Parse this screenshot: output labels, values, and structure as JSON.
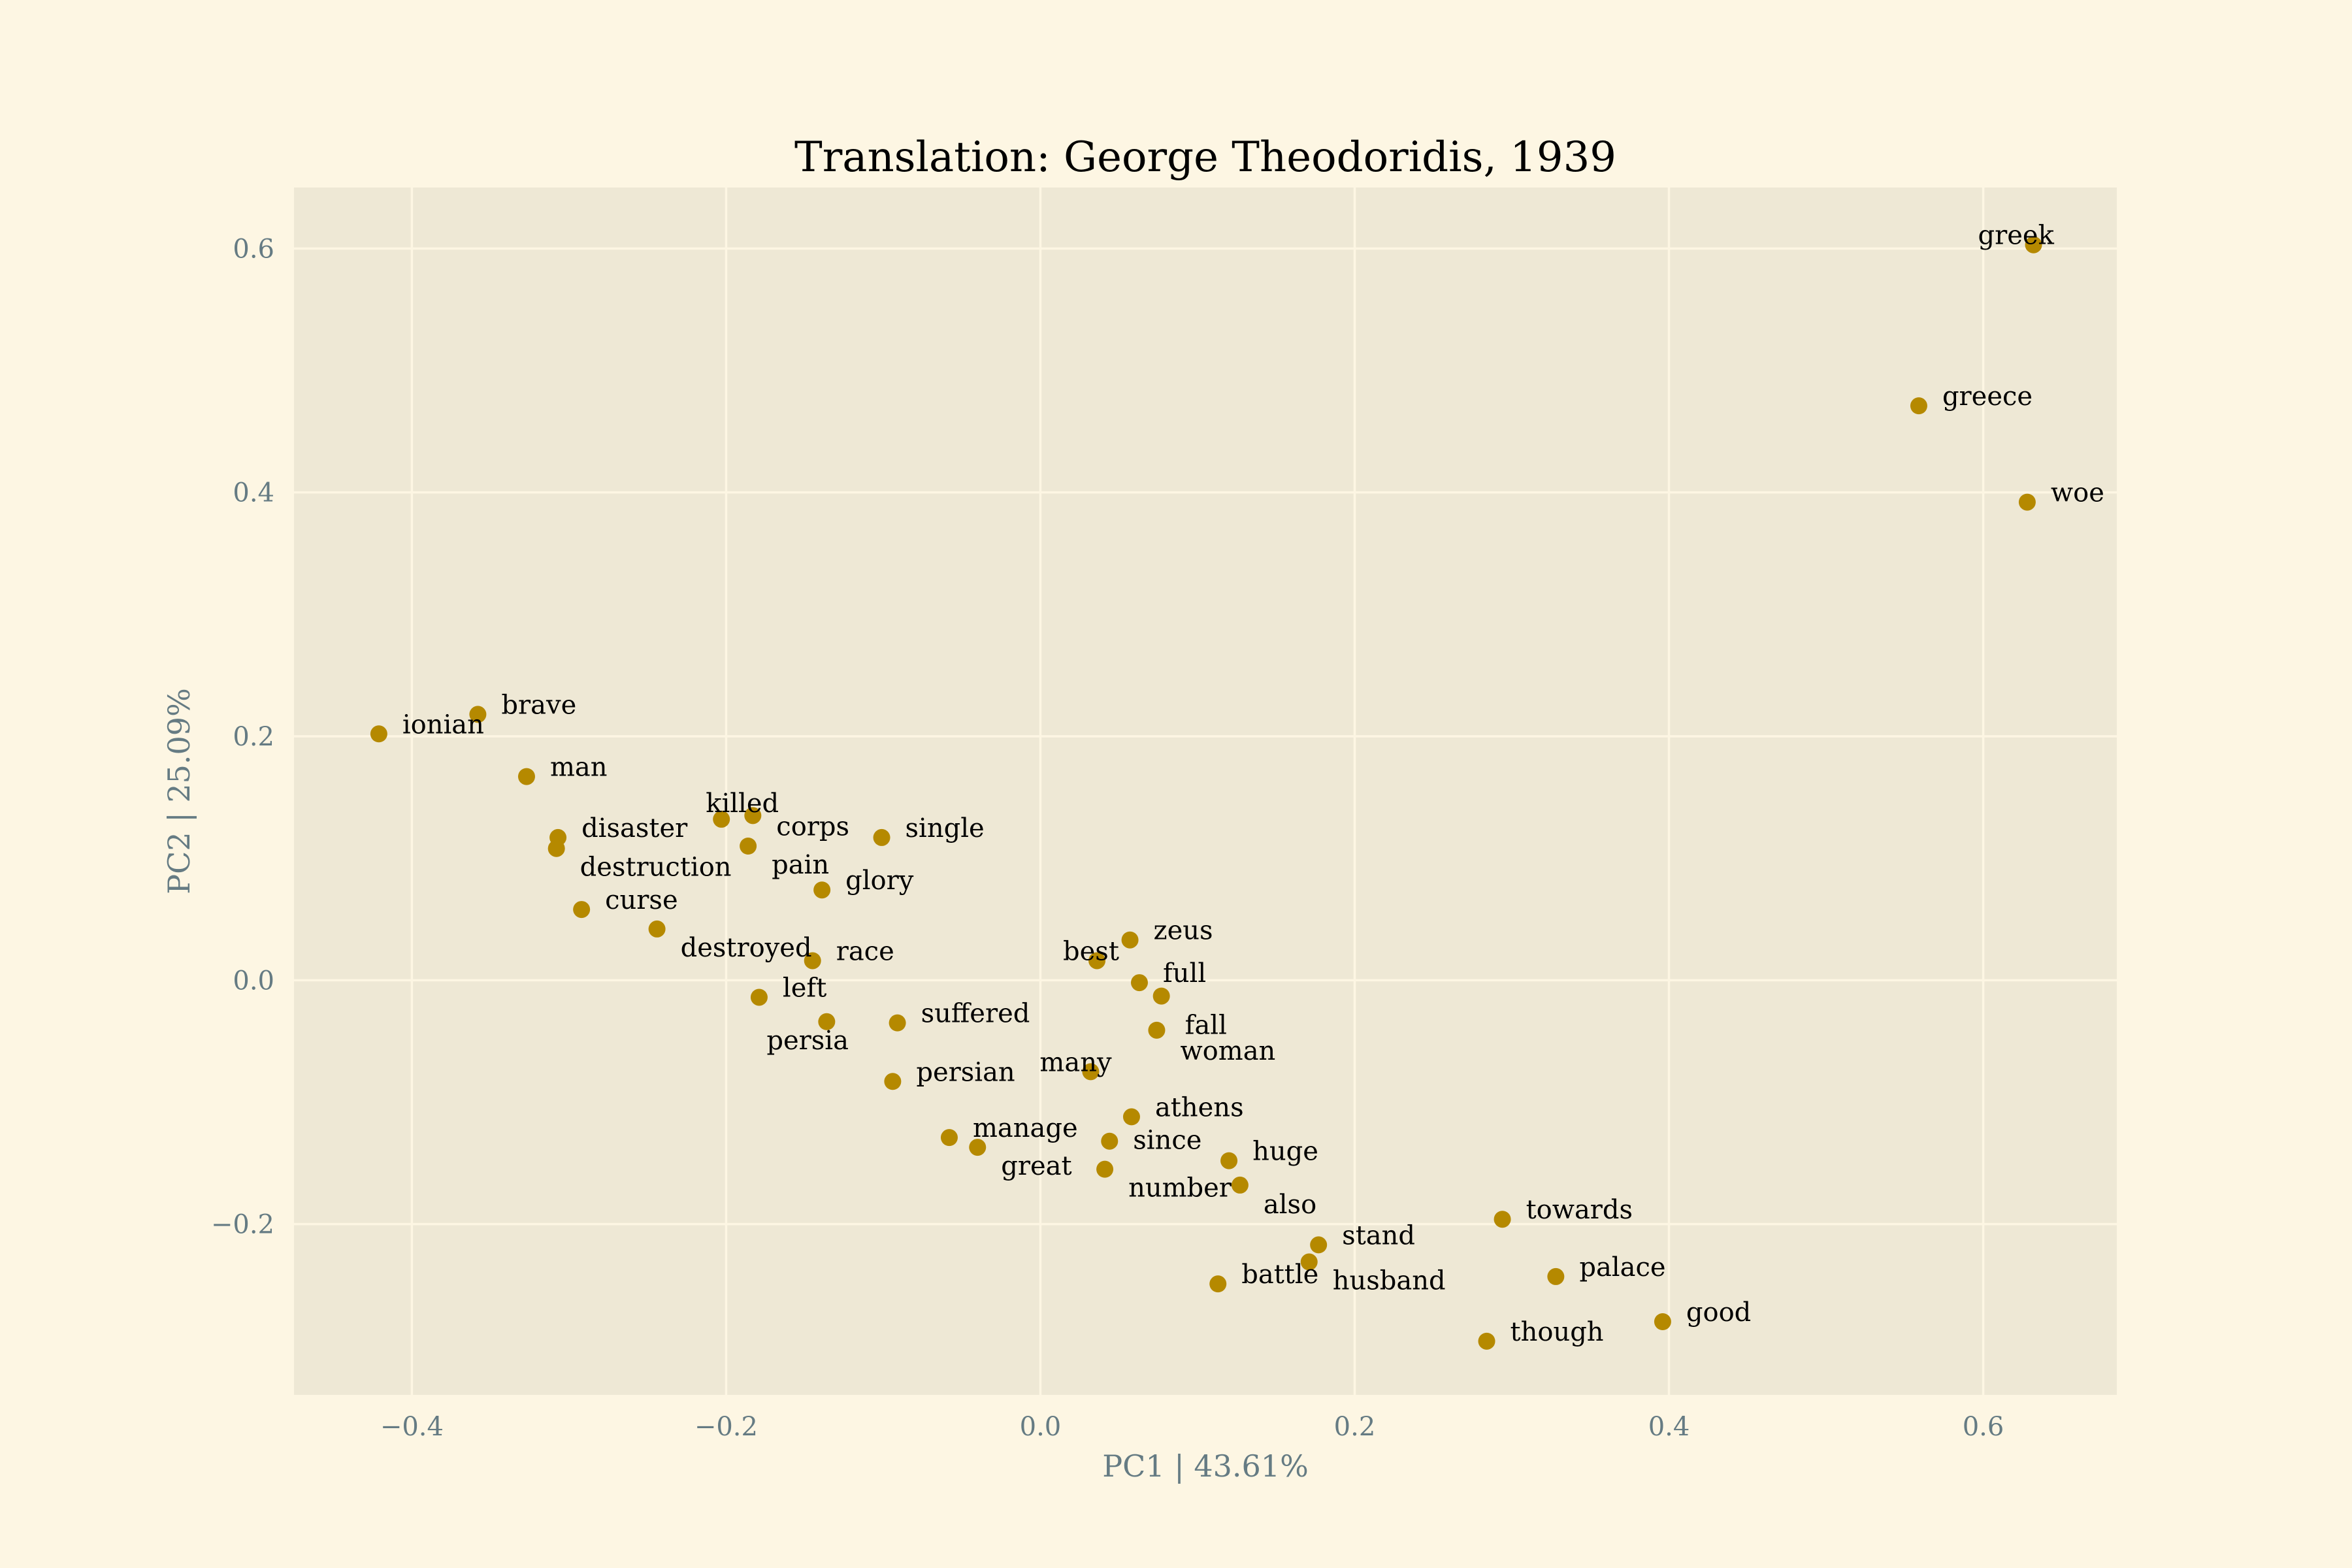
{
  "chart_data": {
    "type": "scatter",
    "title": "Translation: George Theodoridis, 1939",
    "xlabel": "PC1 | 43.61%",
    "ylabel": "PC2 | 25.09%",
    "xlim": [
      -0.475,
      0.685
    ],
    "ylim": [
      -0.34,
      0.65
    ],
    "xticks": [
      -0.4,
      -0.2,
      0.0,
      0.2,
      0.4,
      0.6
    ],
    "yticks": [
      -0.2,
      0.0,
      0.2,
      0.4,
      0.6
    ],
    "xtick_labels": [
      "−0.4",
      "−0.2",
      "0.0",
      "0.2",
      "0.4",
      "0.6"
    ],
    "ytick_labels": [
      "−0.2",
      "0.0",
      "0.2",
      "0.4",
      "0.6"
    ],
    "grid": true,
    "point_color": "#b58900",
    "background_color": "#eee8d5",
    "figure_color": "#fdf6e3",
    "points": [
      {
        "label": "greek",
        "x": 0.632,
        "y": 0.603
      },
      {
        "label": "greece",
        "x": 0.559,
        "y": 0.471
      },
      {
        "label": "woe",
        "x": 0.628,
        "y": 0.392
      },
      {
        "label": "brave",
        "x": -0.358,
        "y": 0.218
      },
      {
        "label": "ionian",
        "x": -0.421,
        "y": 0.202
      },
      {
        "label": "man",
        "x": -0.327,
        "y": 0.167
      },
      {
        "label": "killed",
        "x": -0.203,
        "y": 0.132
      },
      {
        "label": "corps",
        "x": -0.183,
        "y": 0.135
      },
      {
        "label": "disaster",
        "x": -0.307,
        "y": 0.117
      },
      {
        "label": "destruction",
        "x": -0.308,
        "y": 0.108
      },
      {
        "label": "single",
        "x": -0.101,
        "y": 0.117
      },
      {
        "label": "pain",
        "x": -0.186,
        "y": 0.11
      },
      {
        "label": "glory",
        "x": -0.139,
        "y": 0.074
      },
      {
        "label": "curse",
        "x": -0.292,
        "y": 0.058
      },
      {
        "label": "destroyed",
        "x": -0.244,
        "y": 0.042
      },
      {
        "label": "race",
        "x": -0.145,
        "y": 0.016
      },
      {
        "label": "zeus",
        "x": 0.057,
        "y": 0.033
      },
      {
        "label": "best",
        "x": 0.036,
        "y": 0.016
      },
      {
        "label": "full",
        "x": 0.063,
        "y": -0.002
      },
      {
        "label": "fall",
        "x": 0.077,
        "y": -0.013
      },
      {
        "label": "left",
        "x": -0.179,
        "y": -0.014
      },
      {
        "label": "persia",
        "x": -0.136,
        "y": -0.034
      },
      {
        "label": "suffered",
        "x": -0.091,
        "y": -0.035
      },
      {
        "label": "woman",
        "x": 0.074,
        "y": -0.041
      },
      {
        "label": "many",
        "x": 0.032,
        "y": -0.075
      },
      {
        "label": "persian",
        "x": -0.094,
        "y": -0.083
      },
      {
        "label": "athens",
        "x": 0.058,
        "y": -0.112
      },
      {
        "label": "manage",
        "x": -0.058,
        "y": -0.129
      },
      {
        "label": "since",
        "x": 0.044,
        "y": -0.132
      },
      {
        "label": "great",
        "x": -0.04,
        "y": -0.137
      },
      {
        "label": "huge",
        "x": 0.12,
        "y": -0.148
      },
      {
        "label": "number",
        "x": 0.041,
        "y": -0.155
      },
      {
        "label": "also",
        "x": 0.127,
        "y": -0.168
      },
      {
        "label": "towards",
        "x": 0.294,
        "y": -0.196
      },
      {
        "label": "stand",
        "x": 0.177,
        "y": -0.217
      },
      {
        "label": "husband",
        "x": 0.171,
        "y": -0.231
      },
      {
        "label": "battle",
        "x": 0.113,
        "y": -0.249
      },
      {
        "label": "palace",
        "x": 0.328,
        "y": -0.243
      },
      {
        "label": "good",
        "x": 0.396,
        "y": -0.28
      },
      {
        "label": "though",
        "x": 0.284,
        "y": -0.296
      }
    ]
  }
}
